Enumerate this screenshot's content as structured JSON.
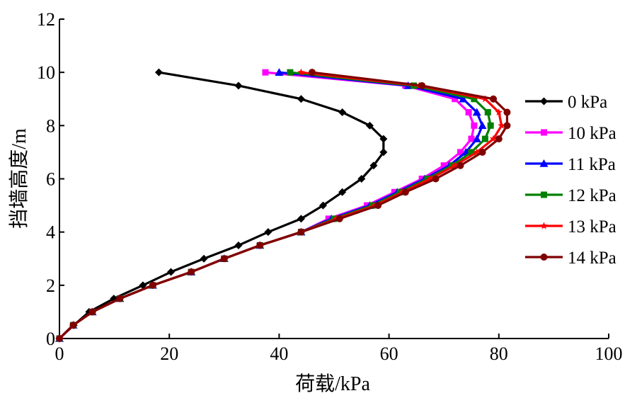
{
  "chart_data": {
    "type": "line",
    "xlabel": "荷载/kPa",
    "ylabel": "挡墙高度/m",
    "xlim": [
      0,
      100
    ],
    "ylim": [
      0,
      12
    ],
    "x_ticks": [
      "0",
      "20",
      "40",
      "60",
      "80",
      "100"
    ],
    "y_ticks": [
      "0",
      "2",
      "4",
      "6",
      "8",
      "10",
      "12"
    ],
    "grid": false,
    "legend_position": "right",
    "series": [
      {
        "name": "0 kPa",
        "color": "#000000",
        "marker": "diamond",
        "points": [
          [
            0,
            0
          ],
          [
            2.6,
            0.5
          ],
          [
            5.4,
            1
          ],
          [
            9.9,
            1.5
          ],
          [
            15.2,
            2
          ],
          [
            20.3,
            2.5
          ],
          [
            26.3,
            3
          ],
          [
            32.6,
            3.5
          ],
          [
            38,
            4
          ],
          [
            44,
            4.5
          ],
          [
            48,
            5
          ],
          [
            51.5,
            5.5
          ],
          [
            55,
            6
          ],
          [
            57.2,
            6.5
          ],
          [
            59,
            7
          ],
          [
            59,
            7.5
          ],
          [
            56.5,
            8
          ],
          [
            51.5,
            8.5
          ],
          [
            44,
            9
          ],
          [
            32.6,
            9.5
          ],
          [
            18.1,
            10
          ]
        ]
      },
      {
        "name": "10 kPa",
        "color": "#ff00ff",
        "marker": "square",
        "points": [
          [
            0,
            0
          ],
          [
            2.5,
            0.5
          ],
          [
            6,
            1
          ],
          [
            11,
            1.5
          ],
          [
            17,
            2
          ],
          [
            24,
            2.5
          ],
          [
            30,
            3
          ],
          [
            36.5,
            3.5
          ],
          [
            44,
            4
          ],
          [
            49,
            4.5
          ],
          [
            56,
            5
          ],
          [
            61,
            5.5
          ],
          [
            66,
            6
          ],
          [
            70,
            6.5
          ],
          [
            73,
            7
          ],
          [
            75,
            7.5
          ],
          [
            75.5,
            8
          ],
          [
            74.5,
            8.5
          ],
          [
            72,
            9
          ],
          [
            63,
            9.5
          ],
          [
            37.5,
            10
          ]
        ]
      },
      {
        "name": "11 kPa",
        "color": "#0000ff",
        "marker": "triangle",
        "points": [
          [
            0,
            0
          ],
          [
            2.5,
            0.5
          ],
          [
            6,
            1
          ],
          [
            11,
            1.5
          ],
          [
            17,
            2
          ],
          [
            24,
            2.5
          ],
          [
            30,
            3
          ],
          [
            36.5,
            3.5
          ],
          [
            44,
            4
          ],
          [
            49.5,
            4.5
          ],
          [
            56.5,
            5
          ],
          [
            61.5,
            5.5
          ],
          [
            66.5,
            6
          ],
          [
            71,
            6.5
          ],
          [
            74,
            7
          ],
          [
            76,
            7.5
          ],
          [
            77,
            8
          ],
          [
            76,
            8.5
          ],
          [
            73.5,
            9
          ],
          [
            63.5,
            9.5
          ],
          [
            40,
            10
          ]
        ]
      },
      {
        "name": "12 kPa",
        "color": "#008000",
        "marker": "square",
        "points": [
          [
            0,
            0
          ],
          [
            2.5,
            0.5
          ],
          [
            6,
            1
          ],
          [
            11,
            1.5
          ],
          [
            17,
            2
          ],
          [
            24,
            2.5
          ],
          [
            30,
            3
          ],
          [
            36.5,
            3.5
          ],
          [
            44,
            4
          ],
          [
            50,
            4.5
          ],
          [
            57,
            5
          ],
          [
            62,
            5.5
          ],
          [
            67,
            6
          ],
          [
            71.5,
            6.5
          ],
          [
            75,
            7
          ],
          [
            77.5,
            7.5
          ],
          [
            78.5,
            8
          ],
          [
            78,
            8.5
          ],
          [
            75.5,
            9
          ],
          [
            64.5,
            9.5
          ],
          [
            42,
            10
          ]
        ]
      },
      {
        "name": "13 kPa",
        "color": "#ff0000",
        "marker": "star",
        "points": [
          [
            0,
            0
          ],
          [
            2.5,
            0.5
          ],
          [
            6,
            1
          ],
          [
            11,
            1.5
          ],
          [
            17,
            2
          ],
          [
            24,
            2.5
          ],
          [
            30,
            3
          ],
          [
            36.5,
            3.5
          ],
          [
            44,
            4
          ],
          [
            50.5,
            4.5
          ],
          [
            57.5,
            5
          ],
          [
            62.5,
            5.5
          ],
          [
            67.5,
            6
          ],
          [
            72,
            6.5
          ],
          [
            76,
            7
          ],
          [
            79,
            7.5
          ],
          [
            80.5,
            8
          ],
          [
            80,
            8.5
          ],
          [
            77.5,
            9
          ],
          [
            65.5,
            9.5
          ],
          [
            44,
            10
          ]
        ]
      },
      {
        "name": "14 kPa",
        "color": "#800000",
        "marker": "circle",
        "points": [
          [
            0,
            0
          ],
          [
            2.5,
            0.5
          ],
          [
            6,
            1
          ],
          [
            11,
            1.5
          ],
          [
            17,
            2
          ],
          [
            24,
            2.5
          ],
          [
            30,
            3
          ],
          [
            36.5,
            3.5
          ],
          [
            44,
            4
          ],
          [
            51,
            4.5
          ],
          [
            58,
            5
          ],
          [
            63,
            5.5
          ],
          [
            68.5,
            6
          ],
          [
            73,
            6.5
          ],
          [
            77,
            7
          ],
          [
            80,
            7.5
          ],
          [
            81.5,
            8
          ],
          [
            81.5,
            8.5
          ],
          [
            79,
            9
          ],
          [
            66,
            9.5
          ],
          [
            46,
            10
          ]
        ]
      }
    ]
  }
}
